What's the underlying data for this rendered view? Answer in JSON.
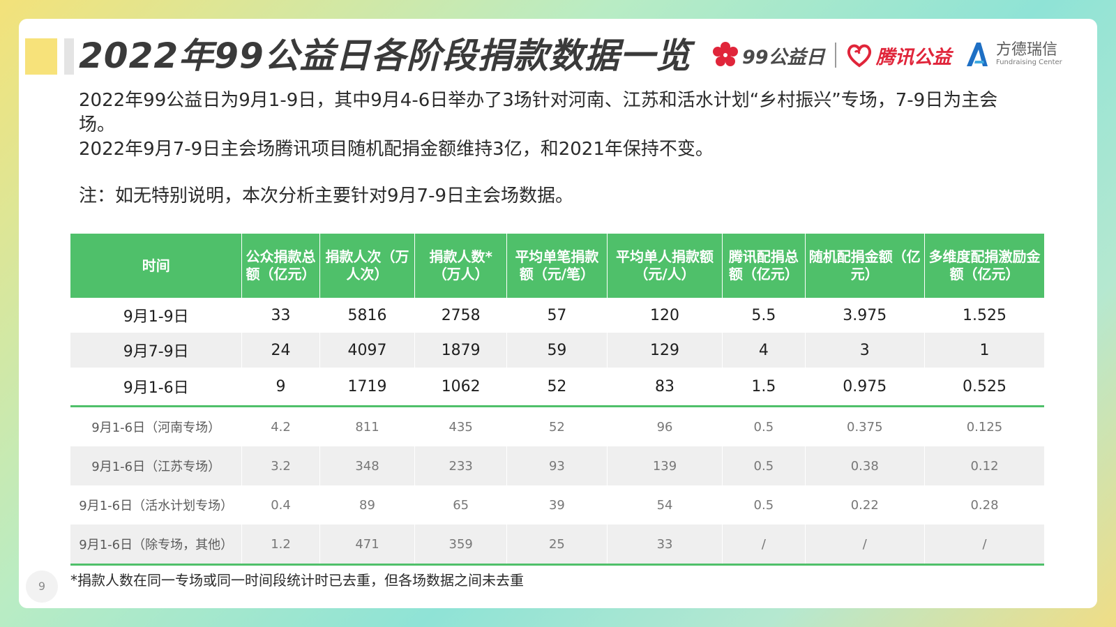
{
  "title": "2022年99公益日各阶段捐款数据一览",
  "logos": {
    "logo1_text": "99公益日",
    "logo2_text": "腾讯公益",
    "logo3_cn": "方德瑞信",
    "logo3_en": "Fundraising Center",
    "logo2_color": "#e0253a",
    "logo1_color": "#e0253a",
    "logo3_color": "#1e6fc4"
  },
  "intro": {
    "line1": "2022年99公益日为9月1-9日，其中9月4-6日举办了3场针对河南、江苏和活水计划“乡村振兴”专场，7-9日为主会场。",
    "line2": "2022年9月7-9日主会场腾讯项目随机配捐金额维持3亿，和2021年保持不变。"
  },
  "note": "注：如无特别说明，本次分析主要针对9月7-9日主会场数据。",
  "table": {
    "header_color": "#4fc06a",
    "headers": [
      "时间",
      "公众捐款总额（亿元）",
      "捐款人次（万人次）",
      "捐款人数*（万人）",
      "平均单笔捐款额（元/笔）",
      "平均单人捐款额（元/人）",
      "腾讯配捐总额（亿元）",
      "随机配捐金额（亿元）",
      "多维度配捐激励金额（亿元）"
    ],
    "main_rows": [
      [
        "9月1-9日",
        "33",
        "5816",
        "2758",
        "57",
        "120",
        "5.5",
        "3.975",
        "1.525"
      ],
      [
        "9月7-9日",
        "24",
        "4097",
        "1879",
        "59",
        "129",
        "4",
        "3",
        "1"
      ],
      [
        "9月1-6日",
        "9",
        "1719",
        "1062",
        "52",
        "83",
        "1.5",
        "0.975",
        "0.525"
      ]
    ],
    "sub_rows": [
      [
        "9月1-6日（河南专场）",
        "4.2",
        "811",
        "435",
        "52",
        "96",
        "0.5",
        "0.375",
        "0.125"
      ],
      [
        "9月1-6日（江苏专场）",
        "3.2",
        "348",
        "233",
        "93",
        "139",
        "0.5",
        "0.38",
        "0.12"
      ],
      [
        "9月1-6日（活水计划专场）",
        "0.4",
        "89",
        "65",
        "39",
        "54",
        "0.5",
        "0.22",
        "0.28"
      ],
      [
        "9月1-6日（除专场，其他）",
        "1.2",
        "471",
        "359",
        "25",
        "33",
        "/",
        "/",
        "/"
      ]
    ]
  },
  "footnote": "*捐款人数在同一专场或同一时间段统计时已去重，但各场数据之间未去重",
  "page_number": "9"
}
